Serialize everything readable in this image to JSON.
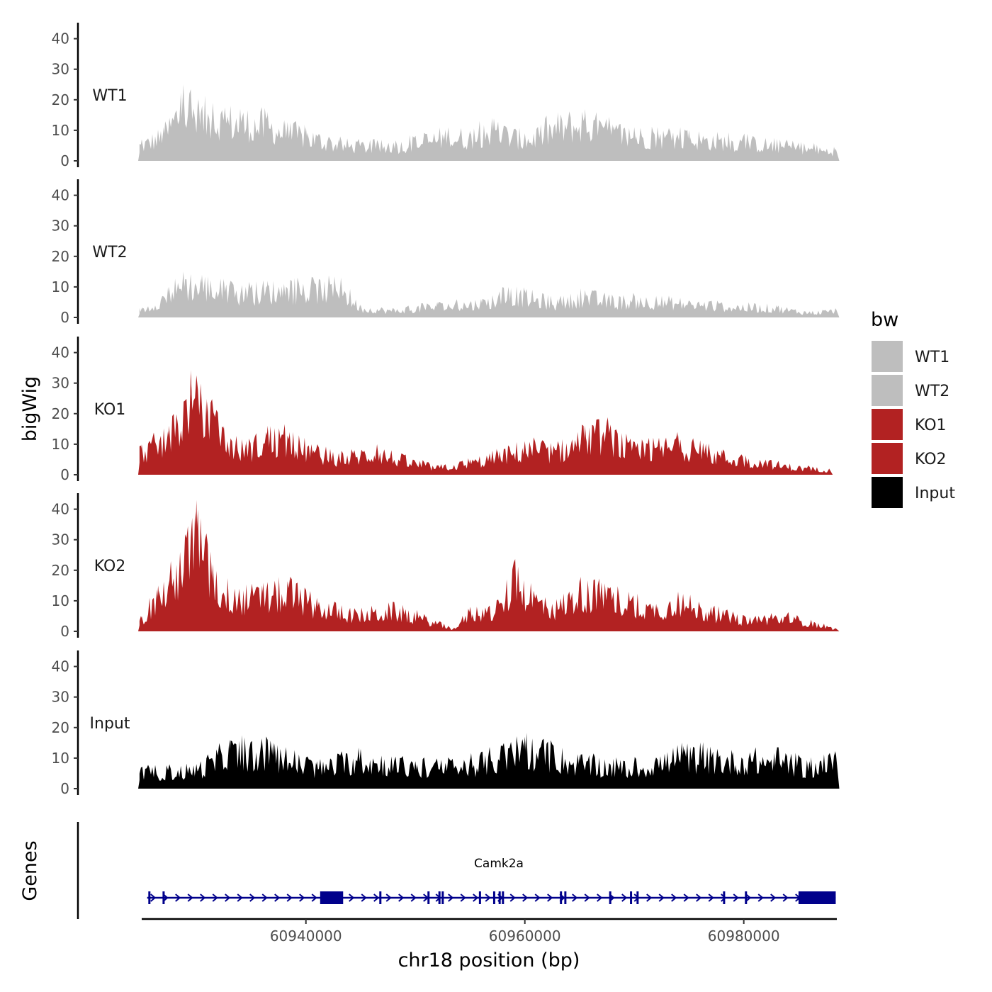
{
  "chart_data": {
    "type": "area",
    "subplots": "stacked coverage tracks sharing x axis",
    "xlabel": "chr18 position (bp)",
    "ylabel": "bigWig",
    "ylim": [
      0,
      45
    ],
    "yticks": [
      0,
      10,
      20,
      30,
      40
    ],
    "xlim": [
      60925000,
      60988500
    ],
    "xticks": [
      60940000,
      60960000,
      60980000
    ],
    "xtick_labels": [
      "60940000",
      "60960000",
      "60980000"
    ],
    "track_range": [
      60924800,
      60988400
    ],
    "legend": {
      "title": "bw",
      "position": "right",
      "entries": [
        {
          "label": "WT1",
          "color": "#bebebe"
        },
        {
          "label": "WT2",
          "color": "#bebebe"
        },
        {
          "label": "KO1",
          "color": "#b22222"
        },
        {
          "label": "KO2",
          "color": "#b22222"
        },
        {
          "label": "Input",
          "color": "#000000"
        }
      ]
    },
    "tracks": [
      {
        "name": "WT1",
        "color": "#bebebe",
        "peaks": [
          {
            "x": 60925000,
            "y": 7
          },
          {
            "x": 60927000,
            "y": 11
          },
          {
            "x": 60928800,
            "y": 25
          },
          {
            "x": 60930200,
            "y": 20
          },
          {
            "x": 60931500,
            "y": 19
          },
          {
            "x": 60934000,
            "y": 17
          },
          {
            "x": 60936500,
            "y": 16
          },
          {
            "x": 60938000,
            "y": 13
          },
          {
            "x": 60940000,
            "y": 11
          },
          {
            "x": 60943000,
            "y": 7
          },
          {
            "x": 60948000,
            "y": 6
          },
          {
            "x": 60953000,
            "y": 11
          },
          {
            "x": 60955000,
            "y": 10
          },
          {
            "x": 60957000,
            "y": 14
          },
          {
            "x": 60960000,
            "y": 9
          },
          {
            "x": 60963000,
            "y": 15
          },
          {
            "x": 60965500,
            "y": 17
          },
          {
            "x": 60968000,
            "y": 12
          },
          {
            "x": 60970000,
            "y": 11
          },
          {
            "x": 60975000,
            "y": 10
          },
          {
            "x": 60980000,
            "y": 8
          },
          {
            "x": 60985000,
            "y": 6
          },
          {
            "x": 60988400,
            "y": 4
          }
        ]
      },
      {
        "name": "WT2",
        "color": "#bebebe",
        "peaks": [
          {
            "x": 60925000,
            "y": 3
          },
          {
            "x": 60927500,
            "y": 10
          },
          {
            "x": 60928800,
            "y": 15
          },
          {
            "x": 60930500,
            "y": 14
          },
          {
            "x": 60932500,
            "y": 12
          },
          {
            "x": 60934500,
            "y": 10
          },
          {
            "x": 60936500,
            "y": 12
          },
          {
            "x": 60938000,
            "y": 11
          },
          {
            "x": 60943200,
            "y": 13
          },
          {
            "x": 60945000,
            "y": 4
          },
          {
            "x": 60948000,
            "y": 3
          },
          {
            "x": 60952000,
            "y": 5
          },
          {
            "x": 60956000,
            "y": 6
          },
          {
            "x": 60958500,
            "y": 10
          },
          {
            "x": 60960000,
            "y": 9
          },
          {
            "x": 60963000,
            "y": 6
          },
          {
            "x": 60965500,
            "y": 9
          },
          {
            "x": 60968000,
            "y": 7
          },
          {
            "x": 60972000,
            "y": 7
          },
          {
            "x": 60978000,
            "y": 5
          },
          {
            "x": 60983000,
            "y": 4
          },
          {
            "x": 60986000,
            "y": 2
          },
          {
            "x": 60988400,
            "y": 3
          }
        ]
      },
      {
        "name": "KO1",
        "color": "#b22222",
        "peaks": [
          {
            "x": 60925000,
            "y": 10
          },
          {
            "x": 60927500,
            "y": 16
          },
          {
            "x": 60929500,
            "y": 33
          },
          {
            "x": 60931000,
            "y": 24
          },
          {
            "x": 60932500,
            "y": 16
          },
          {
            "x": 60934500,
            "y": 10
          },
          {
            "x": 60936500,
            "y": 16
          },
          {
            "x": 60938500,
            "y": 14
          },
          {
            "x": 60940500,
            "y": 10
          },
          {
            "x": 60943000,
            "y": 7
          },
          {
            "x": 60946500,
            "y": 10
          },
          {
            "x": 60949000,
            "y": 6
          },
          {
            "x": 60952000,
            "y": 3
          },
          {
            "x": 60955000,
            "y": 5
          },
          {
            "x": 60957500,
            "y": 8
          },
          {
            "x": 60960000,
            "y": 11
          },
          {
            "x": 60963000,
            "y": 10
          },
          {
            "x": 60965500,
            "y": 16
          },
          {
            "x": 60967500,
            "y": 18
          },
          {
            "x": 60970000,
            "y": 10
          },
          {
            "x": 60974000,
            "y": 13
          },
          {
            "x": 60978000,
            "y": 8
          },
          {
            "x": 60982000,
            "y": 5
          },
          {
            "x": 60985000,
            "y": 3
          },
          {
            "x": 60987800,
            "y": 2
          }
        ]
      },
      {
        "name": "KO2",
        "color": "#b22222",
        "peaks": [
          {
            "x": 60925000,
            "y": 5
          },
          {
            "x": 60926500,
            "y": 15
          },
          {
            "x": 60928500,
            "y": 26
          },
          {
            "x": 60930000,
            "y": 43
          },
          {
            "x": 60931500,
            "y": 22
          },
          {
            "x": 60933500,
            "y": 14
          },
          {
            "x": 60936000,
            "y": 15
          },
          {
            "x": 60938500,
            "y": 17
          },
          {
            "x": 60941000,
            "y": 11
          },
          {
            "x": 60944500,
            "y": 7
          },
          {
            "x": 60948000,
            "y": 9
          },
          {
            "x": 60951000,
            "y": 5
          },
          {
            "x": 60953500,
            "y": 1
          },
          {
            "x": 60955000,
            "y": 8
          },
          {
            "x": 60957500,
            "y": 9
          },
          {
            "x": 60959000,
            "y": 22
          },
          {
            "x": 60962500,
            "y": 9
          },
          {
            "x": 60965000,
            "y": 17
          },
          {
            "x": 60967000,
            "y": 16
          },
          {
            "x": 60969500,
            "y": 13
          },
          {
            "x": 60972000,
            "y": 9
          },
          {
            "x": 60974000,
            "y": 13
          },
          {
            "x": 60977000,
            "y": 8
          },
          {
            "x": 60980000,
            "y": 5
          },
          {
            "x": 60984000,
            "y": 6
          },
          {
            "x": 60988400,
            "y": 1
          }
        ]
      },
      {
        "name": "Input",
        "color": "#000000",
        "peaks": [
          {
            "x": 60925000,
            "y": 7
          },
          {
            "x": 60930000,
            "y": 8
          },
          {
            "x": 60933000,
            "y": 16
          },
          {
            "x": 60937000,
            "y": 15
          },
          {
            "x": 60941000,
            "y": 9
          },
          {
            "x": 60945000,
            "y": 13
          },
          {
            "x": 60950000,
            "y": 9
          },
          {
            "x": 60955000,
            "y": 10
          },
          {
            "x": 60960000,
            "y": 17
          },
          {
            "x": 60965000,
            "y": 11
          },
          {
            "x": 60970000,
            "y": 9
          },
          {
            "x": 60974500,
            "y": 14
          },
          {
            "x": 60979000,
            "y": 12
          },
          {
            "x": 60983000,
            "y": 13
          },
          {
            "x": 60986000,
            "y": 9
          },
          {
            "x": 60988400,
            "y": 12
          }
        ]
      }
    ],
    "genes_track": {
      "label": "Genes",
      "gene_name": "Camk2a",
      "color": "#00008b",
      "gene_start": 60925500,
      "gene_end": 60988400,
      "strand": "+",
      "utr_blocks": [
        [
          60941300,
          60943400
        ],
        [
          60985000,
          60988400
        ]
      ],
      "exons": [
        60925700,
        60927000,
        60946800,
        60951200,
        60952200,
        60952500,
        60955900,
        60957200,
        60957700,
        60958000,
        60963300,
        60963700,
        60967800,
        60969700,
        60970300,
        60978200,
        60980200
      ]
    }
  }
}
